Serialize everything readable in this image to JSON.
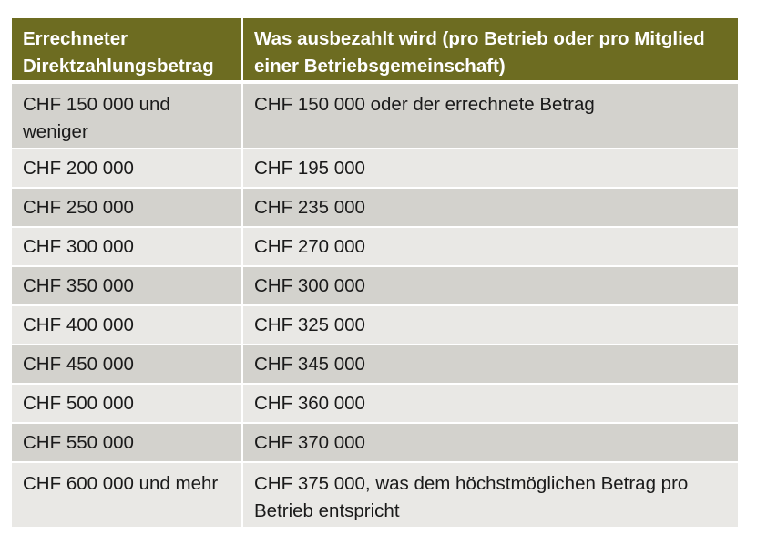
{
  "table": {
    "headers": [
      "Errechneter Direktzahlungsbetrag",
      "Was ausbezahlt wird (pro Betrieb oder pro Mitglied einer Betriebsgemeinschaft)"
    ],
    "rows": [
      [
        "CHF 150 000 und weniger",
        "CHF 150 000 oder der errechnete Betrag"
      ],
      [
        "CHF 200 000",
        "CHF 195 000"
      ],
      [
        "CHF 250 000",
        "CHF 235 000"
      ],
      [
        "CHF 300 000",
        "CHF 270 000"
      ],
      [
        "CHF 350 000",
        "CHF 300 000"
      ],
      [
        "CHF 400 000",
        "CHF 325 000"
      ],
      [
        "CHF 450 000",
        "CHF 345 000"
      ],
      [
        "CHF 500 000",
        "CHF 360 000"
      ],
      [
        "CHF 550 000",
        "CHF 370 000"
      ],
      [
        "CHF 600 000 und mehr",
        "CHF 375 000, was dem höchstmöglichen Betrag pro Betrieb entspricht"
      ]
    ]
  },
  "colors": {
    "header_bg": "#6d6c21",
    "row_dark": "#d3d2cd",
    "row_light": "#e9e8e5"
  }
}
